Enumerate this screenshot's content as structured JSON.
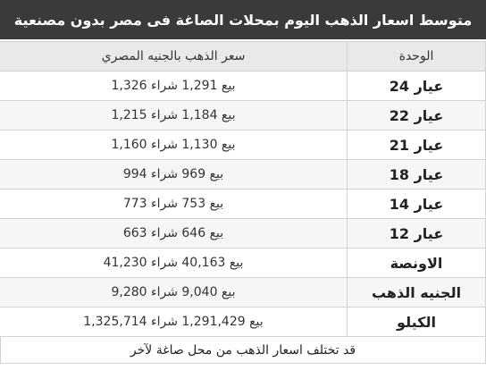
{
  "title": "متوسط اسعار الذهب اليوم بمحلات الصاغة فى مصر بدون مصنعية",
  "headers": {
    "unit": "الوحدة",
    "price": "سعر الذهب بالجنيه المصري"
  },
  "rows": [
    {
      "unit": "عيار 24",
      "price": "بيع 1,291 شراء 1,326"
    },
    {
      "unit": "عيار 22",
      "price": "بيع 1,184 شراء 1,215"
    },
    {
      "unit": "عيار 21",
      "price": "بيع 1,130 شراء 1,160"
    },
    {
      "unit": "عيار 18",
      "price": "بيع 969 شراء 994"
    },
    {
      "unit": "عيار 14",
      "price": "بيع 753 شراء 773"
    },
    {
      "unit": "عيار 12",
      "price": "بيع 646 شراء 663"
    },
    {
      "unit": "الاونصة",
      "price": "بيع 40,163 شراء 41,230"
    },
    {
      "unit": "الجنيه الذهب",
      "price": "بيع 9,040 شراء 9,280"
    },
    {
      "unit": "الكيلو",
      "price": "بيع 1,291,429 شراء 1,325,714"
    }
  ],
  "note": "قد تختلف اسعار الذهب من محل صاغة لآخر"
}
